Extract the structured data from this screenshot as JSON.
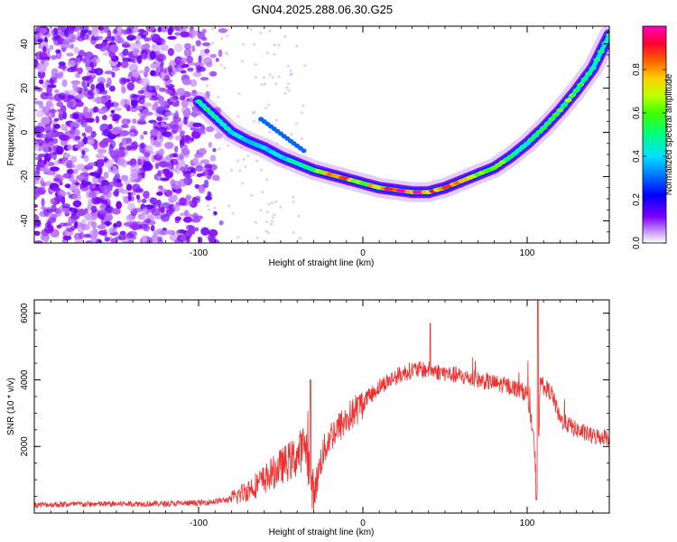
{
  "title": "GN04.2025.288.06.30.G25",
  "chart_data": [
    {
      "type": "heatmap",
      "panel": "top",
      "xlabel": "Height of straight line (km)",
      "ylabel": "Frequency (Hz)",
      "xlim": [
        -200,
        150
      ],
      "ylim": [
        -50,
        48
      ],
      "xticks": [
        -100,
        0,
        100
      ],
      "xtick_labels": [
        "-100",
        "0",
        "100"
      ],
      "yticks": [
        -40,
        -20,
        0,
        20,
        40
      ],
      "ytick_labels": [
        "-40",
        "-20",
        "0",
        "20",
        "40"
      ],
      "colorbar": {
        "label": "Normalized spectral amplitude",
        "range": [
          0,
          1
        ],
        "ticks": [
          0.0,
          0.2,
          0.4,
          0.6,
          0.8
        ],
        "tick_labels": [
          "0.0",
          "0.2",
          "0.4",
          "0.6",
          "0.8"
        ],
        "colormap": [
          "#ffffff",
          "#7f00ff",
          "#0000ff",
          "#00c8ff",
          "#00ff80",
          "#80ff00",
          "#ffd000",
          "#ff4000",
          "#ff0040",
          "#ff00c0"
        ]
      },
      "ridge": {
        "x": [
          -100,
          -90,
          -80,
          -70,
          -60,
          -50,
          -40,
          -30,
          -20,
          -10,
          0,
          10,
          20,
          30,
          40,
          50,
          60,
          70,
          80,
          90,
          100,
          110,
          120,
          130,
          140,
          150
        ],
        "freq": [
          14,
          7,
          0,
          -4,
          -7,
          -11,
          -14,
          -17,
          -19,
          -21,
          -23,
          -25,
          -26,
          -27,
          -27,
          -25,
          -22,
          -19,
          -16,
          -11,
          -5,
          2,
          10,
          19,
          29,
          44
        ],
        "amplitude": [
          0.5,
          0.45,
          0.42,
          0.4,
          0.4,
          0.42,
          0.45,
          0.55,
          0.75,
          0.8,
          0.65,
          0.8,
          0.9,
          0.9,
          0.85,
          0.8,
          0.75,
          0.7,
          0.65,
          0.55,
          0.45,
          0.55,
          0.6,
          0.6,
          0.55,
          0.5
        ]
      }
    },
    {
      "type": "line",
      "panel": "bottom",
      "xlabel": "Height of straight line (km)",
      "ylabel": "SNR (10 * v/v)",
      "xlim": [
        -200,
        150
      ],
      "ylim": [
        0,
        6400
      ],
      "xticks": [
        -100,
        0,
        100
      ],
      "xtick_labels": [
        "-100",
        "0",
        "100"
      ],
      "yticks": [
        2000,
        4000,
        6000
      ],
      "ytick_labels": [
        "2000",
        "4000",
        "6000"
      ],
      "color": "#f03030",
      "series": [
        {
          "name": "SNR",
          "x": [
            -200,
            -180,
            -160,
            -140,
            -120,
            -100,
            -90,
            -80,
            -70,
            -60,
            -50,
            -40,
            -35,
            -30,
            -25,
            -20,
            -10,
            0,
            10,
            20,
            30,
            40,
            50,
            60,
            70,
            80,
            90,
            100,
            104,
            106,
            108,
            110,
            115,
            120,
            130,
            140,
            150
          ],
          "y": [
            250,
            260,
            270,
            280,
            280,
            300,
            350,
            420,
            700,
            1000,
            1400,
            1700,
            2100,
            500,
            1700,
            2300,
            2800,
            3300,
            3800,
            4100,
            4300,
            4300,
            4200,
            4100,
            4000,
            3900,
            3800,
            3600,
            2200,
            600,
            4000,
            3800,
            3600,
            2800,
            2500,
            2300,
            2300
          ]
        }
      ]
    }
  ]
}
